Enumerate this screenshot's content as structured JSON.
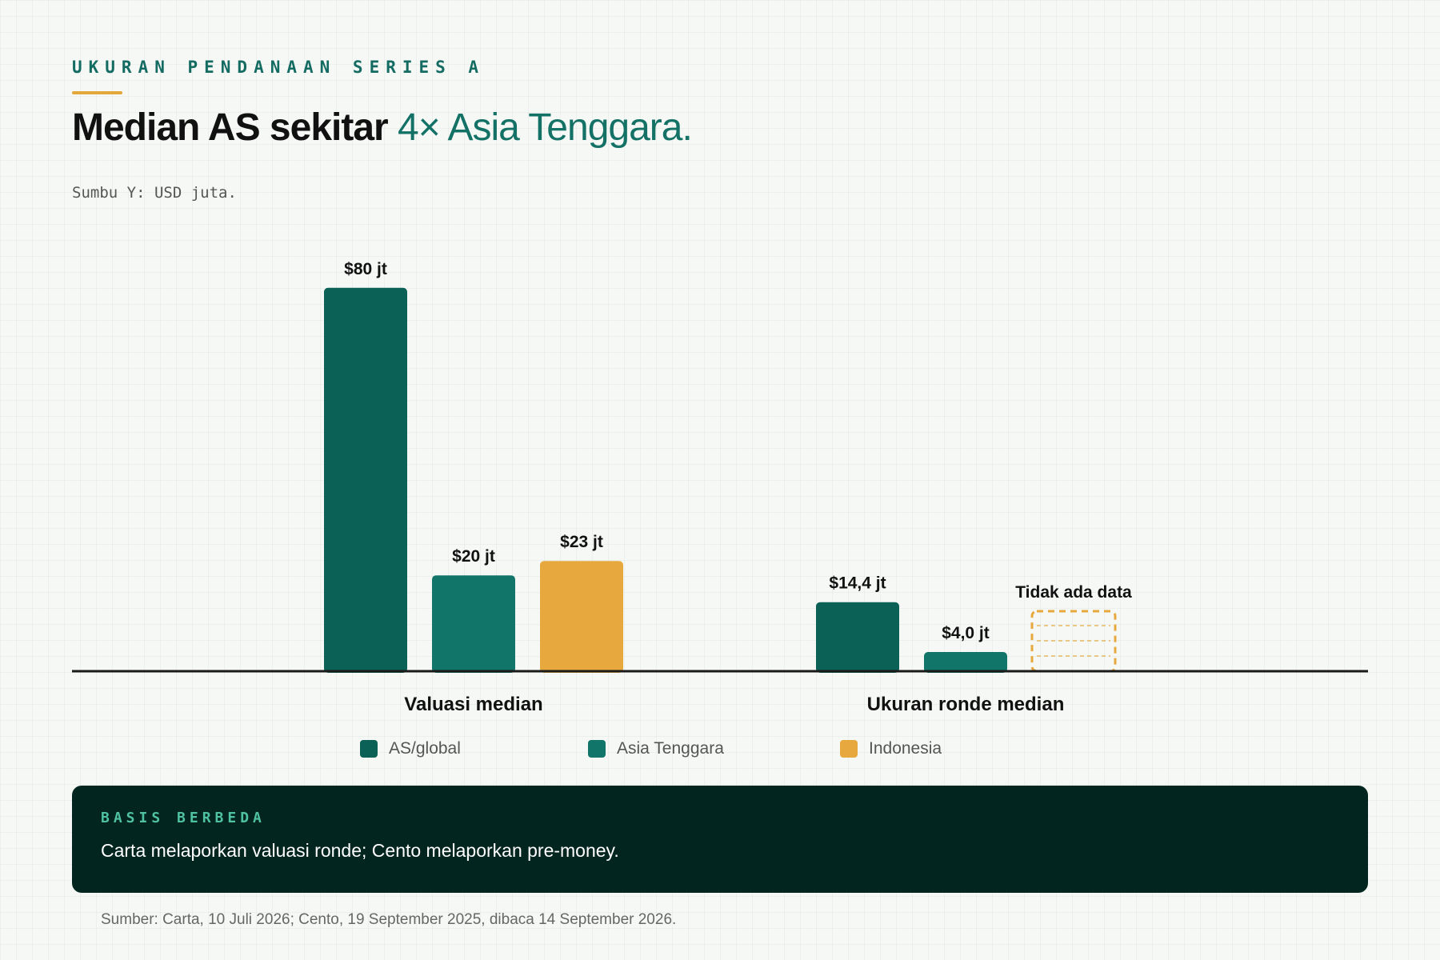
{
  "eyebrow": "UKURAN PENDANAAN SERIES A",
  "headline": {
    "strong": "Median AS sekitar",
    "accent": "4× Asia Tenggara."
  },
  "axis_note": "Sumbu Y: USD juta.",
  "chart_data": {
    "type": "bar",
    "unit": "USD juta",
    "categories": [
      "Valuasi median",
      "Ukuran ronde median"
    ],
    "ylim": [
      0,
      90
    ],
    "grid": false,
    "legend_position": "bottom",
    "series": [
      {
        "name": "AS/global",
        "color": "#0c6157",
        "values": [
          80,
          14.4
        ],
        "labels": [
          "$80 jt",
          "$14,4 jt"
        ]
      },
      {
        "name": "Asia Tenggara",
        "color": "#12756a",
        "values": [
          20,
          4.0
        ],
        "labels": [
          "$20 jt",
          "$4,0 jt"
        ]
      },
      {
        "name": "Indonesia",
        "color": "#e7a93e",
        "values": [
          23,
          null
        ],
        "labels": [
          "$23 jt",
          "Tidak ada data"
        ]
      }
    ]
  },
  "callout": {
    "label": "BASIS BERBEDA",
    "text": "Carta melaporkan valuasi ronde; Cento melaporkan pre-money."
  },
  "source": "Sumber: Carta, 10 Juli 2026; Cento, 19 September 2025, dibaca 14 September 2026."
}
